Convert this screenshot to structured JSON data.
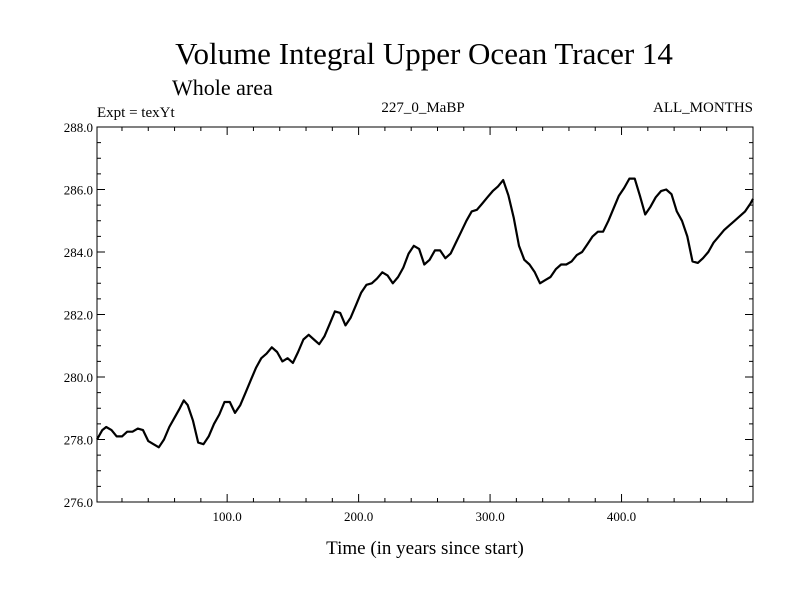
{
  "chart_data": {
    "type": "line",
    "title": "Volume Integral Upper Ocean Tracer 14",
    "subtitle": "Whole area",
    "expt_label": "Expt = texYt",
    "center_label": "227_0_MaBP",
    "right_label": "ALL_MONTHS",
    "xlabel": "Time (in years since start)",
    "ylabel": "",
    "xlim": [
      1,
      500
    ],
    "ylim": [
      276.0,
      288.0
    ],
    "x_ticks": [
      100,
      200,
      300,
      400
    ],
    "x_tick_labels": [
      "100.0",
      "200.0",
      "300.0",
      "400.0"
    ],
    "y_ticks": [
      276,
      278,
      280,
      282,
      284,
      286,
      288
    ],
    "y_tick_labels": [
      "276.0",
      "278.0",
      "280.0",
      "282.0",
      "284.0",
      "286.0",
      "288.0"
    ],
    "grid": false,
    "line_color": "#000000",
    "series": [
      {
        "x": [
          1,
          5,
          8,
          12,
          16,
          20,
          24,
          28,
          32,
          36,
          40,
          44,
          48,
          52,
          56,
          60,
          64,
          67,
          70,
          74,
          78,
          82,
          86,
          90,
          94,
          98,
          102,
          106,
          110,
          114,
          118,
          122,
          126,
          130,
          134,
          138,
          142,
          146,
          150,
          154,
          158,
          162,
          166,
          170,
          174,
          178,
          182,
          186,
          190,
          194,
          198,
          202,
          206,
          210,
          214,
          218,
          222,
          226,
          230,
          234,
          238,
          242,
          246,
          250,
          254,
          258,
          262,
          266,
          270,
          274,
          278,
          282,
          286,
          290,
          294,
          298,
          302,
          306,
          310,
          314,
          318,
          322,
          326,
          330,
          334,
          338,
          342,
          346,
          350,
          354,
          358,
          362,
          366,
          370,
          374,
          378,
          382,
          386,
          390,
          394,
          398,
          402,
          406,
          410,
          414,
          418,
          422,
          426,
          430,
          434,
          438,
          442,
          446,
          450,
          454,
          458,
          462,
          466,
          470,
          474,
          478,
          482,
          486,
          490,
          494,
          498,
          500
        ],
        "y": [
          278.0,
          278.3,
          278.4,
          278.3,
          278.1,
          278.1,
          278.25,
          278.25,
          278.35,
          278.3,
          277.95,
          277.85,
          277.75,
          278.0,
          278.4,
          278.7,
          279.0,
          279.25,
          279.1,
          278.6,
          277.9,
          277.85,
          278.1,
          278.5,
          278.8,
          279.2,
          279.2,
          278.85,
          279.1,
          279.5,
          279.9,
          280.3,
          280.6,
          280.75,
          280.95,
          280.8,
          280.5,
          280.6,
          280.45,
          280.8,
          281.2,
          281.35,
          281.2,
          281.05,
          281.3,
          281.7,
          282.1,
          282.05,
          281.65,
          281.9,
          282.3,
          282.7,
          282.95,
          283.0,
          283.15,
          283.35,
          283.25,
          283.0,
          283.2,
          283.5,
          283.95,
          284.2,
          284.1,
          283.6,
          283.75,
          284.05,
          284.05,
          283.8,
          283.95,
          284.3,
          284.65,
          285.0,
          285.3,
          285.35,
          285.55,
          285.75,
          285.95,
          286.1,
          286.3,
          285.8,
          285.1,
          284.2,
          283.75,
          283.6,
          283.35,
          283.0,
          283.1,
          283.2,
          283.45,
          283.6,
          283.6,
          283.7,
          283.9,
          284.0,
          284.25,
          284.5,
          284.65,
          284.65,
          285.0,
          285.4,
          285.8,
          286.05,
          286.35,
          286.35,
          285.8,
          285.2,
          285.45,
          285.75,
          285.95,
          286.0,
          285.85,
          285.3,
          285.0,
          284.5,
          283.7,
          283.65,
          283.8,
          284.0,
          284.3,
          284.5,
          284.7,
          284.85,
          285.0,
          285.15,
          285.3,
          285.55,
          285.7
        ]
      }
    ]
  }
}
